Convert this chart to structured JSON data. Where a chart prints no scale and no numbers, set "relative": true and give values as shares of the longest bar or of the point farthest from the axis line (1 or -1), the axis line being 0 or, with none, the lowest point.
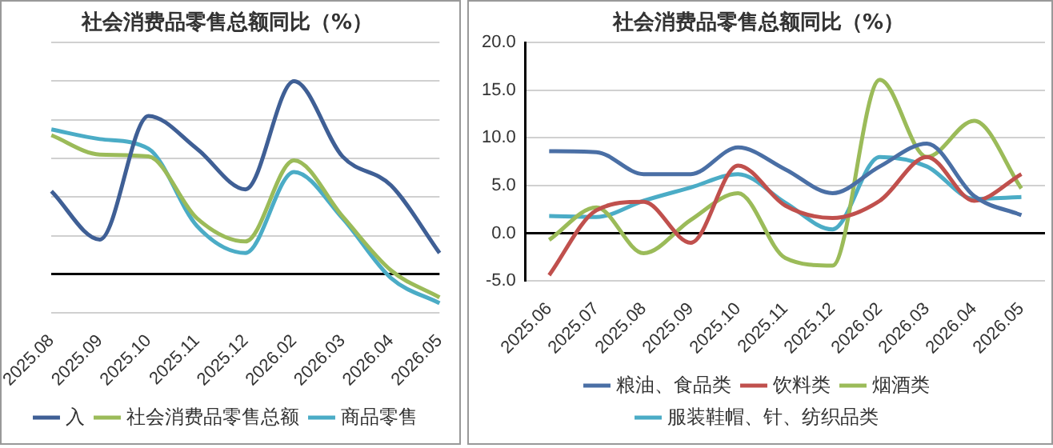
{
  "chart_data": [
    {
      "type": "line",
      "title": "社会消费品零售总额同比（%）",
      "relative": true,
      "grid": "y",
      "legend": "bottom",
      "marker": "none",
      "categories": [
        "2025.08",
        "2025.09",
        "2025.10",
        "2025.11",
        "2025.12",
        "2026.02",
        "2026.03",
        "2026.04",
        "2026.05"
      ],
      "series": [
        {
          "name": "入",
          "color": "#3f5f95",
          "values": [
            0.43,
            0.18,
            0.82,
            0.65,
            0.44,
            1,
            0.61,
            0.46,
            0.11
          ]
        },
        {
          "name": "社会消费品零售总额",
          "color": "#9bbb59",
          "values": [
            0.72,
            0.62,
            0.61,
            0.29,
            0.17,
            0.59,
            0.3,
            0.02,
            -0.12
          ]
        },
        {
          "name": "商品零售",
          "color": "#4bacc6",
          "values": [
            0.75,
            0.7,
            0.65,
            0.25,
            0.11,
            0.53,
            0.29,
            -0.02,
            -0.15
          ]
        }
      ]
    },
    {
      "type": "line",
      "title": "社会消费品零售总额同比（%）",
      "grid": "y",
      "legend": "bottom",
      "marker": "none",
      "ylim": [
        -5,
        20
      ],
      "yticks": [
        {
          "value": -5,
          "label": "-5.0"
        },
        {
          "value": 0,
          "label": "0.0"
        },
        {
          "value": 5,
          "label": "5.0"
        },
        {
          "value": 10,
          "label": "10.0"
        },
        {
          "value": 15,
          "label": "15.0"
        },
        {
          "value": 20,
          "label": "20.0"
        }
      ],
      "categories": [
        "2025.06",
        "2025.07",
        "2025.08",
        "2025.09",
        "2025.10",
        "2025.11",
        "2025.12",
        "2026.02",
        "2026.03",
        "2026.04",
        "2026.05"
      ],
      "series": [
        {
          "name": "粮油、食品类",
          "color": "#4a6fa5",
          "values": [
            8.6,
            8.5,
            6.2,
            6.2,
            9.0,
            6.7,
            4.2,
            7.0,
            9.4,
            3.9,
            1.9
          ]
        },
        {
          "name": "饮料类",
          "color": "#c0504d",
          "values": [
            -4.4,
            2.4,
            3.3,
            -1.0,
            7.1,
            2.9,
            1.6,
            3.4,
            8.0,
            3.4,
            6.2
          ]
        },
        {
          "name": "烟酒类",
          "color": "#9bbb59",
          "values": [
            -0.7,
            2.7,
            -2.1,
            1.4,
            4.2,
            -2.6,
            -3.4,
            16.1,
            8.0,
            11.8,
            4.7
          ]
        },
        {
          "name": "服装鞋帽、针、纺织品类",
          "color": "#4bacc6",
          "values": [
            1.8,
            1.7,
            3.4,
            4.8,
            6.2,
            3.2,
            0.4,
            8.0,
            7.0,
            3.6,
            3.8
          ]
        }
      ]
    }
  ]
}
